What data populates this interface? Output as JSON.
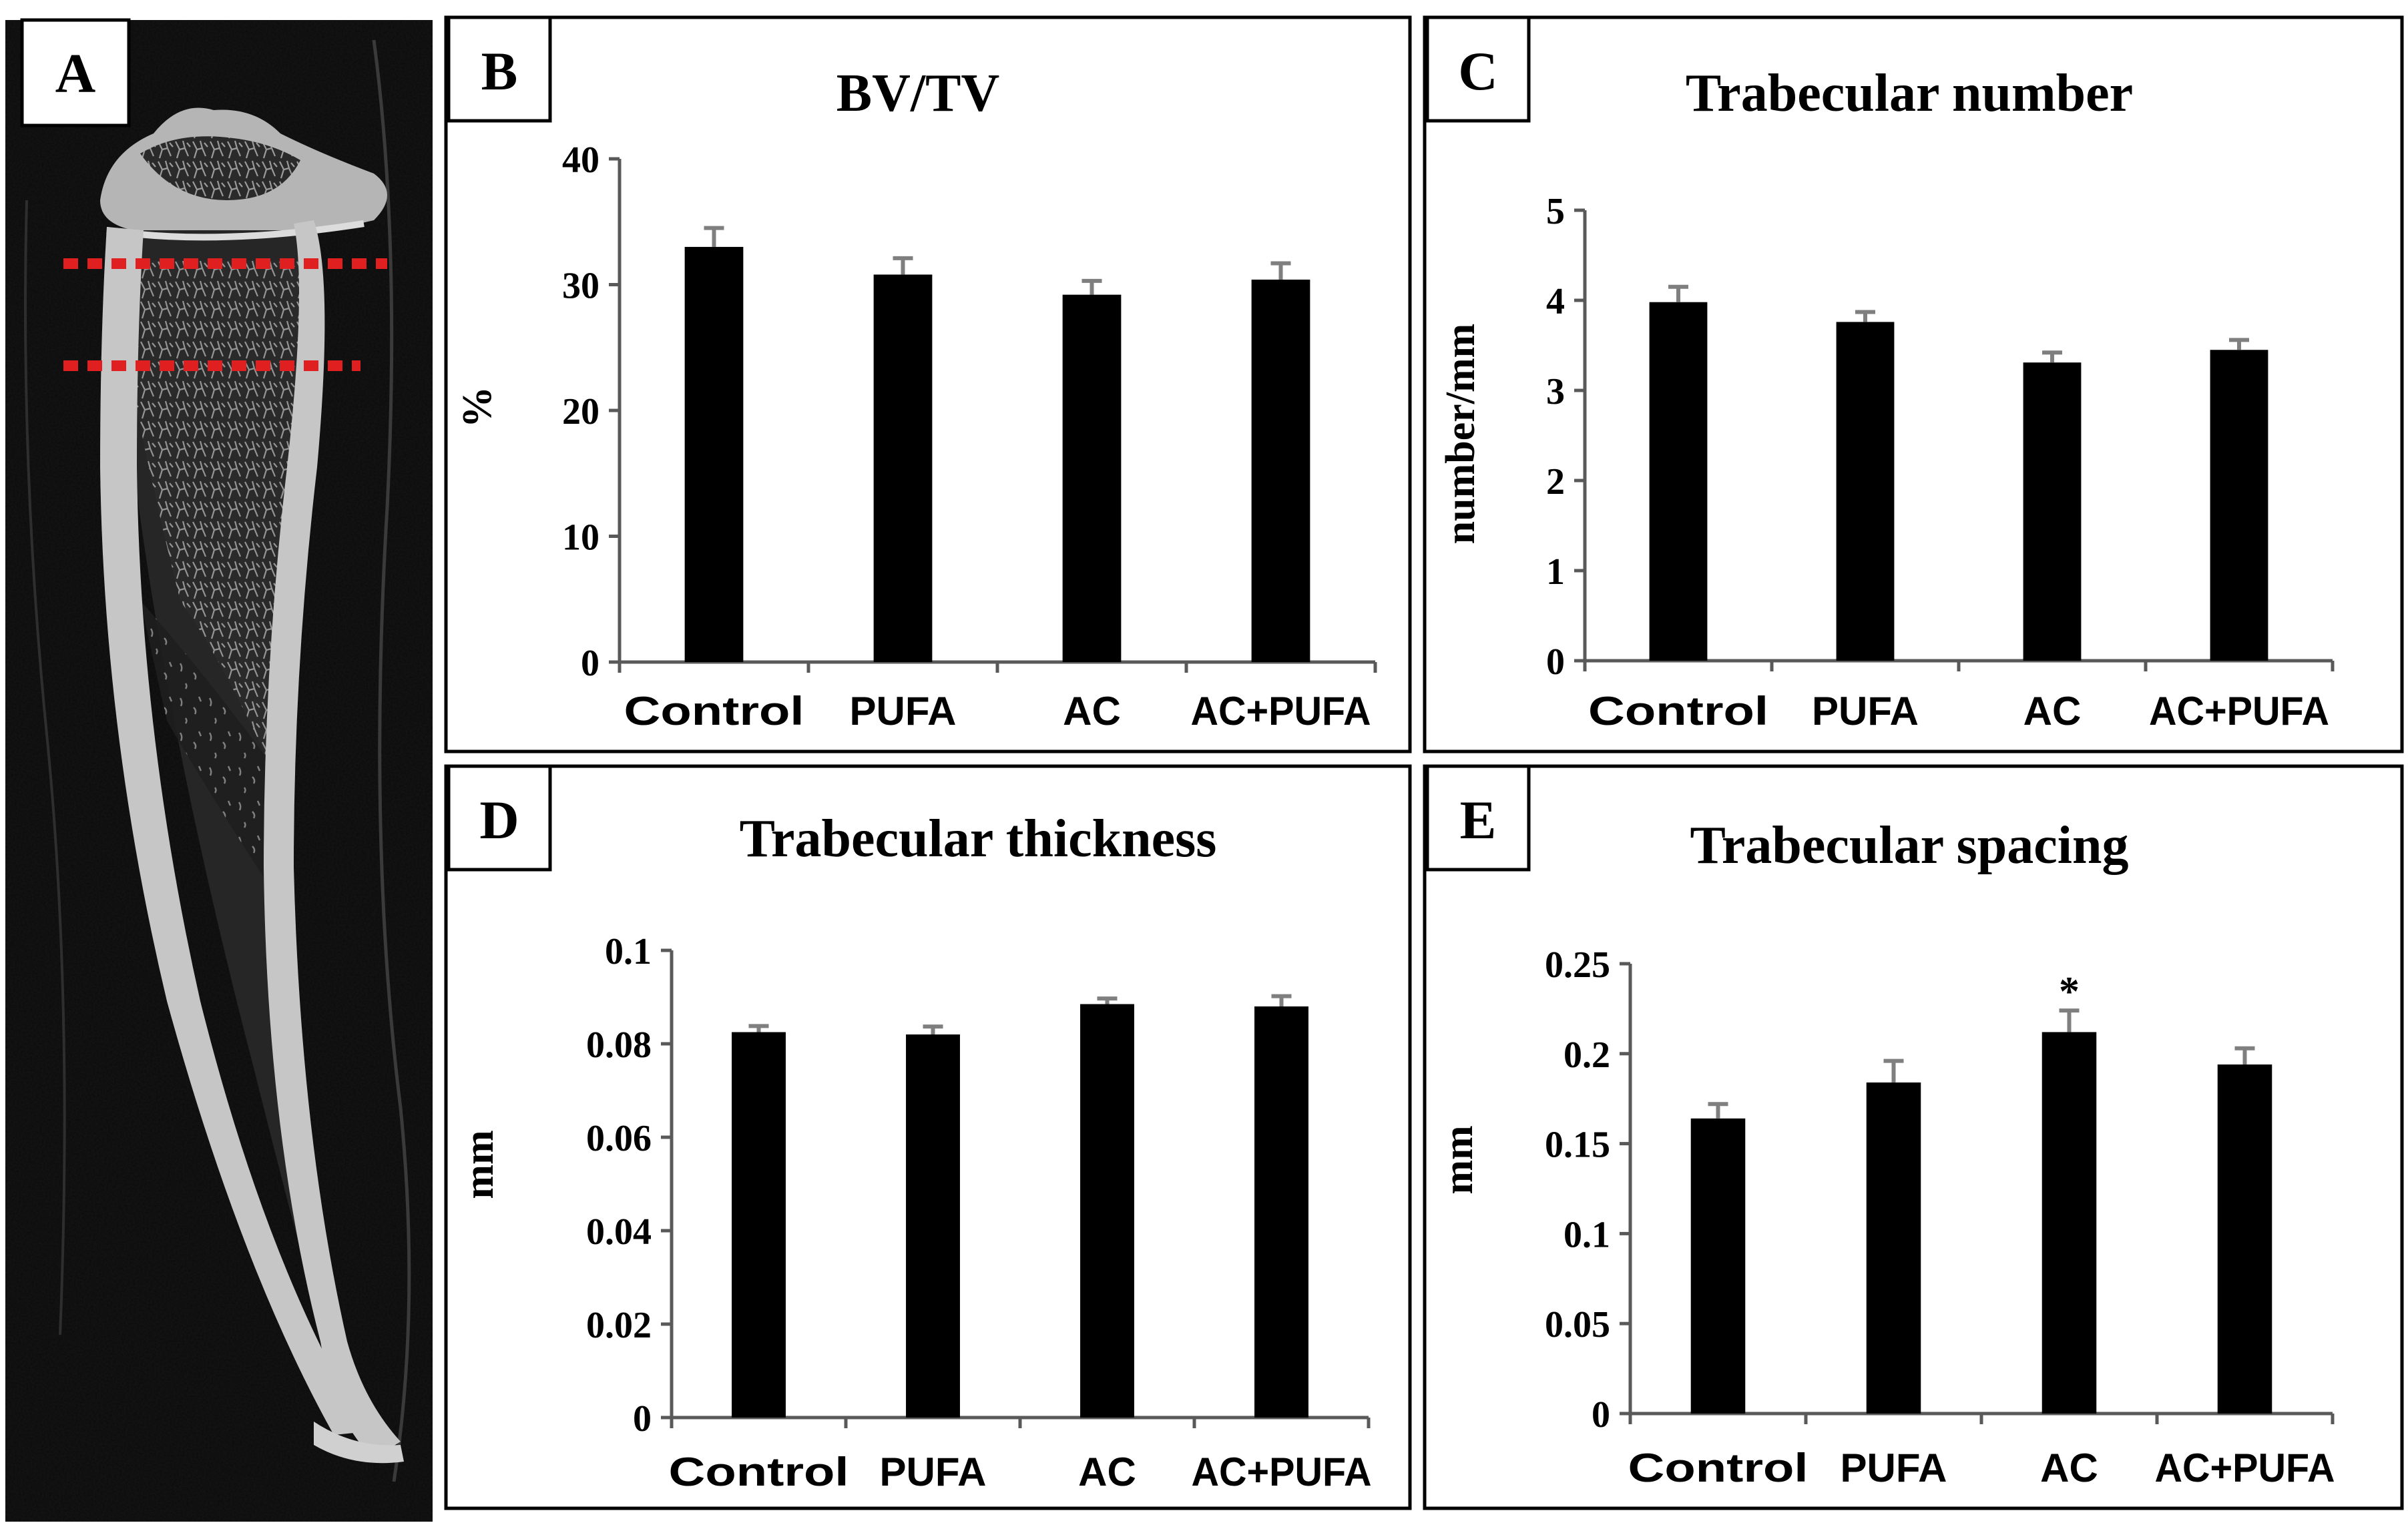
{
  "colors": {
    "bar": "#000000",
    "error_bar": "#7f7f7f",
    "axis": "#595959",
    "panel_border": "#000000",
    "roi_line": "#e02020",
    "scan_background": "#111111",
    "bone": "#bdbdbd"
  },
  "panel_a": {
    "label": "A",
    "caption": "micro-CT section of the tibia with the region of interest marked between two red dashed lines"
  },
  "chart_data": [
    {
      "panel": "B",
      "type": "bar",
      "title": "BV/TV",
      "ylabel": "%",
      "categories": [
        "Control",
        "PUFA",
        "AC",
        "AC+PUFA"
      ],
      "values": [
        33.0,
        30.8,
        29.2,
        30.4
      ],
      "errors": [
        1.5,
        1.3,
        1.1,
        1.3
      ],
      "ylim": [
        0,
        40
      ],
      "yticks": [
        0,
        10,
        20,
        30,
        40
      ],
      "ytick_labels": [
        "0",
        "10",
        "20",
        "30",
        "40"
      ],
      "annotations": [
        "",
        "",
        "",
        ""
      ]
    },
    {
      "panel": "C",
      "type": "bar",
      "title": "Trabecular number",
      "ylabel": "number/mm",
      "categories": [
        "Control",
        "PUFA",
        "AC",
        "AC+PUFA"
      ],
      "values": [
        3.98,
        3.76,
        3.31,
        3.45
      ],
      "errors": [
        0.17,
        0.11,
        0.11,
        0.11
      ],
      "ylim": [
        0,
        5
      ],
      "yticks": [
        0,
        1,
        2,
        3,
        4,
        5
      ],
      "ytick_labels": [
        "0",
        "1",
        "2",
        "3",
        "4",
        "5"
      ],
      "annotations": [
        "",
        "",
        "",
        ""
      ]
    },
    {
      "panel": "D",
      "type": "bar",
      "title": "Trabecular thickness",
      "ylabel": "mm",
      "categories": [
        "Control",
        "PUFA",
        "AC",
        "AC+PUFA"
      ],
      "values": [
        0.0825,
        0.082,
        0.0885,
        0.088
      ],
      "errors": [
        0.0013,
        0.0017,
        0.0012,
        0.0022
      ],
      "ylim": [
        0,
        0.1
      ],
      "yticks": [
        0,
        0.02,
        0.04,
        0.06,
        0.08,
        0.1
      ],
      "ytick_labels": [
        "0",
        "0.02",
        "0.04",
        "0.06",
        "0.08",
        "0.1"
      ],
      "annotations": [
        "",
        "",
        "",
        ""
      ]
    },
    {
      "panel": "E",
      "type": "bar",
      "title": "Trabecular spacing",
      "ylabel": "mm",
      "categories": [
        "Control",
        "PUFA",
        "AC",
        "AC+PUFA"
      ],
      "values": [
        0.164,
        0.184,
        0.212,
        0.194
      ],
      "errors": [
        0.008,
        0.012,
        0.012,
        0.009
      ],
      "ylim": [
        0,
        0.25
      ],
      "yticks": [
        0,
        0.05,
        0.1,
        0.15,
        0.2,
        0.25
      ],
      "ytick_labels": [
        "0",
        "0.05",
        "0.1",
        "0.15",
        "0.2",
        "0.25"
      ],
      "annotations": [
        "",
        "",
        "*",
        ""
      ]
    }
  ]
}
